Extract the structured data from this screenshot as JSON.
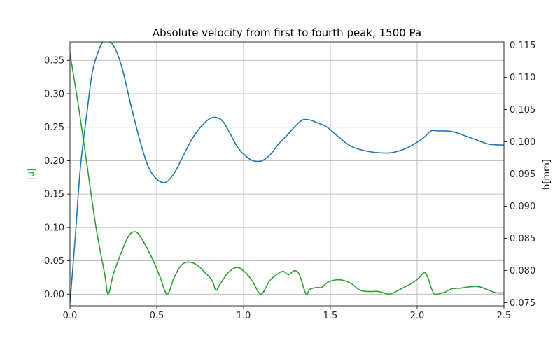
{
  "chart_data": {
    "type": "line",
    "title": "Absolute velocity from first to fourth peak, 1500 Pa",
    "xlabel": "",
    "ylabel_left": "|u|",
    "ylabel_right": "h[mm]",
    "xlim": [
      0.0,
      2.5
    ],
    "ylim_left": [
      -0.0175,
      0.3775
    ],
    "ylim_right": [
      0.0745,
      0.1155
    ],
    "grid": true,
    "x_ticks": [
      "0.0",
      "0.5",
      "1.0",
      "1.5",
      "2.0",
      "2.5"
    ],
    "x_tick_values": [
      0.0,
      0.5,
      1.0,
      1.5,
      2.0,
      2.5
    ],
    "y_left_ticks": [
      "0.00",
      "0.05",
      "0.10",
      "0.15",
      "0.20",
      "0.25",
      "0.30",
      "0.35"
    ],
    "y_left_tick_values": [
      0.0,
      0.05,
      0.1,
      0.15,
      0.2,
      0.25,
      0.3,
      0.35
    ],
    "y_right_ticks": [
      "0.075",
      "0.080",
      "0.085",
      "0.090",
      "0.095",
      "0.100",
      "0.105",
      "0.110",
      "0.115"
    ],
    "y_right_tick_values": [
      0.075,
      0.08,
      0.085,
      0.09,
      0.095,
      0.1,
      0.105,
      0.11,
      0.115
    ],
    "colors": {
      "u": "#2ca02c",
      "h": "#1f77b4"
    },
    "series": [
      {
        "key": "u",
        "axis": "left",
        "points": [
          [
            0.0,
            0.36
          ],
          [
            0.05,
            0.28
          ],
          [
            0.1,
            0.19
          ],
          [
            0.15,
            0.1
          ],
          [
            0.2,
            0.03
          ],
          [
            0.22,
            0.0
          ],
          [
            0.25,
            0.03
          ],
          [
            0.3,
            0.065
          ],
          [
            0.34,
            0.088
          ],
          [
            0.38,
            0.093
          ],
          [
            0.42,
            0.08
          ],
          [
            0.48,
            0.05
          ],
          [
            0.52,
            0.025
          ],
          [
            0.56,
            0.0
          ],
          [
            0.6,
            0.025
          ],
          [
            0.64,
            0.043
          ],
          [
            0.68,
            0.048
          ],
          [
            0.73,
            0.044
          ],
          [
            0.78,
            0.032
          ],
          [
            0.82,
            0.02
          ],
          [
            0.84,
            0.006
          ],
          [
            0.86,
            0.013
          ],
          [
            0.91,
            0.032
          ],
          [
            0.96,
            0.04
          ],
          [
            1.0,
            0.035
          ],
          [
            1.05,
            0.02
          ],
          [
            1.1,
            0.0
          ],
          [
            1.15,
            0.02
          ],
          [
            1.2,
            0.031
          ],
          [
            1.23,
            0.034
          ],
          [
            1.26,
            0.029
          ],
          [
            1.29,
            0.035
          ],
          [
            1.32,
            0.03
          ],
          [
            1.36,
            0.0
          ],
          [
            1.38,
            0.007
          ],
          [
            1.42,
            0.01
          ],
          [
            1.45,
            0.01
          ],
          [
            1.48,
            0.017
          ],
          [
            1.52,
            0.021
          ],
          [
            1.57,
            0.021
          ],
          [
            1.62,
            0.016
          ],
          [
            1.67,
            0.006
          ],
          [
            1.72,
            0.004
          ],
          [
            1.78,
            0.004
          ],
          [
            1.84,
            0.0
          ],
          [
            1.9,
            0.007
          ],
          [
            1.96,
            0.015
          ],
          [
            2.0,
            0.022
          ],
          [
            2.04,
            0.032
          ],
          [
            2.06,
            0.026
          ],
          [
            2.08,
            0.01
          ],
          [
            2.1,
            0.0
          ],
          [
            2.13,
            0.001
          ],
          [
            2.16,
            0.003
          ],
          [
            2.2,
            0.008
          ],
          [
            2.25,
            0.009
          ],
          [
            2.3,
            0.011
          ],
          [
            2.36,
            0.011
          ],
          [
            2.42,
            0.005
          ],
          [
            2.46,
            0.002
          ],
          [
            2.5,
            0.002
          ]
        ]
      },
      {
        "key": "h",
        "axis": "right",
        "points": [
          [
            0.0,
            0.075
          ],
          [
            0.03,
            0.085
          ],
          [
            0.06,
            0.096
          ],
          [
            0.1,
            0.105
          ],
          [
            0.13,
            0.111
          ],
          [
            0.17,
            0.1145
          ],
          [
            0.2,
            0.1158
          ],
          [
            0.23,
            0.1155
          ],
          [
            0.26,
            0.1145
          ],
          [
            0.3,
            0.1115
          ],
          [
            0.35,
            0.1058
          ],
          [
            0.4,
            0.1005
          ],
          [
            0.45,
            0.0962
          ],
          [
            0.5,
            0.0942
          ],
          [
            0.55,
            0.0937
          ],
          [
            0.6,
            0.0951
          ],
          [
            0.65,
            0.0977
          ],
          [
            0.7,
            0.1003
          ],
          [
            0.75,
            0.1022
          ],
          [
            0.8,
            0.1035
          ],
          [
            0.84,
            0.1038
          ],
          [
            0.88,
            0.1032
          ],
          [
            0.92,
            0.1014
          ],
          [
            0.96,
            0.0994
          ],
          [
            1.0,
            0.0981
          ],
          [
            1.05,
            0.0971
          ],
          [
            1.1,
            0.097
          ],
          [
            1.15,
            0.0979
          ],
          [
            1.2,
            0.0996
          ],
          [
            1.25,
            0.101
          ],
          [
            1.3,
            0.1025
          ],
          [
            1.34,
            0.1034
          ],
          [
            1.38,
            0.1034
          ],
          [
            1.42,
            0.103
          ],
          [
            1.48,
            0.1023
          ],
          [
            1.55,
            0.1007
          ],
          [
            1.62,
            0.0993
          ],
          [
            1.7,
            0.0986
          ],
          [
            1.78,
            0.0983
          ],
          [
            1.85,
            0.0983
          ],
          [
            1.92,
            0.0988
          ],
          [
            1.98,
            0.0996
          ],
          [
            2.04,
            0.1007
          ],
          [
            2.08,
            0.1017
          ],
          [
            2.12,
            0.1017
          ],
          [
            2.2,
            0.1016
          ],
          [
            2.28,
            0.1009
          ],
          [
            2.36,
            0.1001
          ],
          [
            2.42,
            0.0996
          ],
          [
            2.5,
            0.0995
          ]
        ]
      }
    ]
  }
}
